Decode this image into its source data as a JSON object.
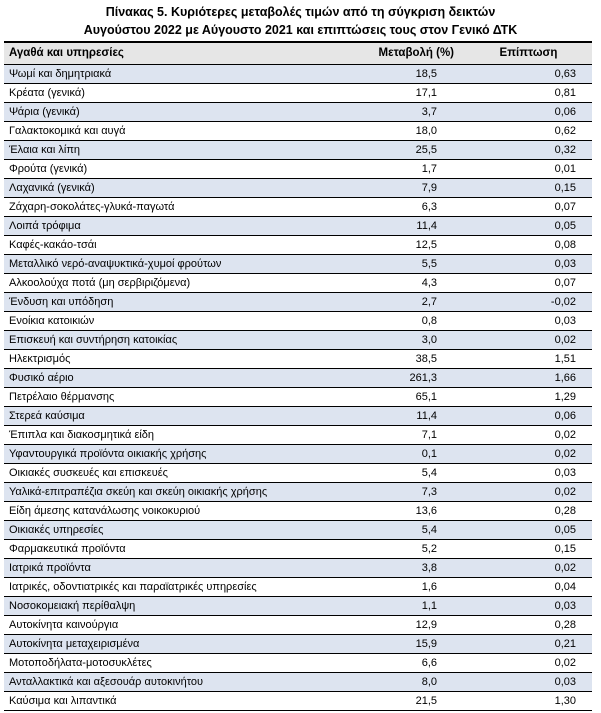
{
  "title": {
    "line1": "Πίνακας  5. Κυριότερες μεταβολές τιμών από τη σύγκριση δεικτών",
    "line2": "Αυγούστου 2022 με Αύγουστο 2021 και επιπτώσεις τους στον Γενικό ΔΤΚ"
  },
  "headers": {
    "goods": "Αγαθά και υπηρεσίες",
    "change": "Μεταβολή (%)",
    "impact": "Επίπτωση"
  },
  "rows": [
    {
      "name": "Ψωμί και δημητριακά",
      "change": "18,5",
      "impact": "0,63"
    },
    {
      "name": "Κρέατα (γενικά)",
      "change": "17,1",
      "impact": "0,81"
    },
    {
      "name": "Ψάρια (γενικά)",
      "change": "3,7",
      "impact": "0,06"
    },
    {
      "name": "Γαλακτοκομικά και αυγά",
      "change": "18,0",
      "impact": "0,62"
    },
    {
      "name": "Έλαια και λίπη",
      "change": "25,5",
      "impact": "0,32"
    },
    {
      "name": "Φρούτα (γενικά)",
      "change": "1,7",
      "impact": "0,01"
    },
    {
      "name": "Λαχανικά (γενικά)",
      "change": "7,9",
      "impact": "0,15"
    },
    {
      "name": "Ζάχαρη-σοκολάτες-γλυκά-παγωτά",
      "change": "6,3",
      "impact": "0,07"
    },
    {
      "name": "Λοιπά τρόφιμα",
      "change": "11,4",
      "impact": "0,05"
    },
    {
      "name": "Καφές-κακάο-τσάι",
      "change": "12,5",
      "impact": "0,08"
    },
    {
      "name": "Μεταλλικό νερό-αναψυκτικά-χυμοί φρούτων",
      "change": "5,5",
      "impact": "0,03"
    },
    {
      "name": "Αλκοολούχα ποτά (μη σερβιριζόμενα)",
      "change": "4,3",
      "impact": "0,07"
    },
    {
      "name": "Ένδυση και υπόδηση",
      "change": "2,7",
      "impact": "-0,02"
    },
    {
      "name": "Ενοίκια κατοικιών",
      "change": "0,8",
      "impact": "0,03"
    },
    {
      "name": "Επισκευή και συντήρηση κατοικίας",
      "change": "3,0",
      "impact": "0,02"
    },
    {
      "name": "Ηλεκτρισμός",
      "change": "38,5",
      "impact": "1,51"
    },
    {
      "name": "Φυσικό αέριο",
      "change": "261,3",
      "impact": "1,66"
    },
    {
      "name": "Πετρέλαιο θέρμανσης",
      "change": "65,1",
      "impact": "1,29"
    },
    {
      "name": "Στερεά καύσιμα",
      "change": "11,4",
      "impact": "0,06"
    },
    {
      "name": "Έπιπλα και διακοσμητικά είδη",
      "change": "7,1",
      "impact": "0,02"
    },
    {
      "name": "Υφαντουργικά προϊόντα οικιακής χρήσης",
      "change": "0,1",
      "impact": "0,02"
    },
    {
      "name": "Οικιακές συσκευές και επισκευές",
      "change": "5,4",
      "impact": "0,03"
    },
    {
      "name": "Υαλικά-επιτραπέζια σκεύη και σκεύη οικιακής χρήσης",
      "change": "7,3",
      "impact": "0,02"
    },
    {
      "name": "Είδη άμεσης κατανάλωσης νοικοκυριού",
      "change": "13,6",
      "impact": "0,28"
    },
    {
      "name": "Οικιακές υπηρεσίες",
      "change": "5,4",
      "impact": "0,05"
    },
    {
      "name": "Φαρμακευτικά προϊόντα",
      "change": "5,2",
      "impact": "0,15"
    },
    {
      "name": "Ιατρικά προϊόντα",
      "change": "3,8",
      "impact": "0,02"
    },
    {
      "name": "Ιατρικές, οδοντιατρικές και παραϊατρικές υπηρεσίες",
      "change": "1,6",
      "impact": "0,04"
    },
    {
      "name": "Νοσοκομειακή περίθαλψη",
      "change": "1,1",
      "impact": "0,03"
    },
    {
      "name": "Αυτοκίνητα καινούργια",
      "change": "12,9",
      "impact": "0,28"
    },
    {
      "name": "Αυτοκίνητα μεταχειρισμένα",
      "change": "15,9",
      "impact": "0,21"
    },
    {
      "name": "Μοτοποδήλατα-μοτοσυκλέτες",
      "change": "6,6",
      "impact": "0,02"
    },
    {
      "name": "Ανταλλακτικά και αξεσουάρ αυτοκινήτου",
      "change": "8,0",
      "impact": "0,03"
    },
    {
      "name": "Καύσιμα και λιπαντικά",
      "change": "21,5",
      "impact": "1,30"
    }
  ]
}
